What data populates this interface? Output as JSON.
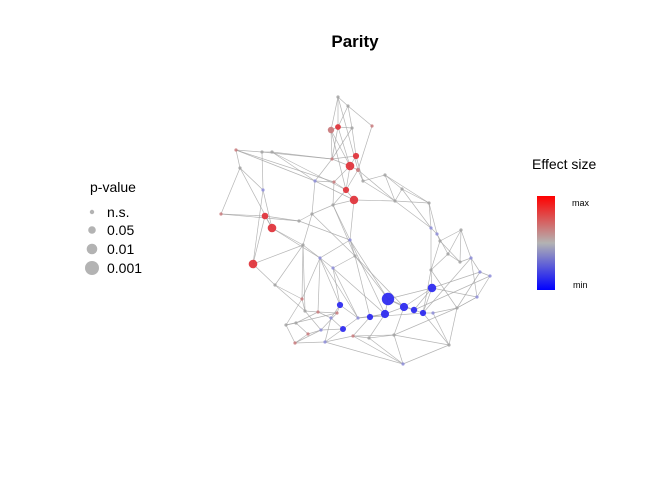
{
  "title": "Parity",
  "pvalue_legend": {
    "title": "p-value",
    "entries": [
      {
        "label": "n.s."
      },
      {
        "label": "0.05"
      },
      {
        "label": "0.01"
      },
      {
        "label": "0.001"
      }
    ]
  },
  "effect_legend": {
    "title": "Effect size",
    "max_label": "max",
    "min_label": "min",
    "colors": {
      "max": "#ff0000",
      "mid": "#b3b3b3",
      "min": "#0000ff"
    }
  },
  "colors": {
    "edge": "#a3a3a3",
    "legend_symbol": "#b3b3b3",
    "red_node": "#e0363d",
    "blue_node": "#2f2cf0",
    "pale_red": "#c97a7c",
    "pale_blue": "#8d8dd9",
    "grey_node": "#a3a3a3"
  }
}
